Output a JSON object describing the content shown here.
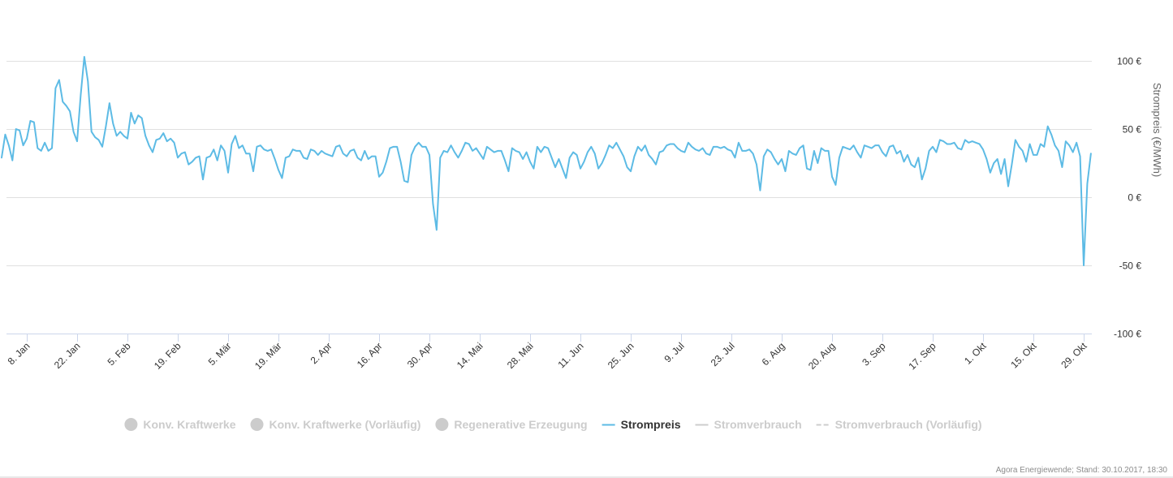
{
  "chart_data": {
    "type": "line",
    "xlabel": "",
    "ylabel": "Strompreis (€/MWh)",
    "ylim": [
      -100,
      100
    ],
    "yticks": [
      "100 €",
      "50 €",
      "0 €",
      "-50 €",
      "-100 €"
    ],
    "ytick_values": [
      100,
      50,
      0,
      -50,
      -100
    ],
    "x_start": "2017-01-01",
    "x_end": "2017-10-30",
    "xticks": [
      "8. Jan",
      "22. Jan",
      "5. Feb",
      "19. Feb",
      "5. M&auml;r",
      "19. M&auml;r",
      "2. Apr",
      "16. Apr",
      "30. Apr",
      "14. Mai",
      "28. Mai",
      "11. Jun",
      "25. Jun",
      "9. Jul",
      "23. Jul",
      "6. Aug",
      "20. Aug",
      "3. Sep",
      "17. Sep",
      "1. Okt",
      "15. Okt",
      "29. Okt"
    ],
    "xtick_dates": [
      "2017-01-08",
      "2017-01-22",
      "2017-02-05",
      "2017-02-19",
      "2017-03-05",
      "2017-03-19",
      "2017-04-02",
      "2017-04-16",
      "2017-04-30",
      "2017-05-14",
      "2017-05-28",
      "2017-06-11",
      "2017-06-25",
      "2017-07-09",
      "2017-07-23",
      "2017-08-06",
      "2017-08-20",
      "2017-09-03",
      "2017-09-17",
      "2017-10-01",
      "2017-10-15",
      "2017-10-29"
    ],
    "grid": true,
    "legend_position": "bottom-center",
    "series": [
      {
        "name": "Strompreis",
        "color": "#5dbbe5",
        "values": [
          29,
          46,
          38,
          27,
          50,
          49,
          38,
          43,
          56,
          55,
          36,
          34,
          40,
          34,
          36,
          80,
          86,
          70,
          67,
          63,
          48,
          41,
          75,
          103,
          85,
          48,
          44,
          42,
          37,
          52,
          69,
          54,
          45,
          48,
          45,
          43,
          62,
          54,
          60,
          58,
          45,
          38,
          33,
          42,
          43,
          47,
          41,
          43,
          40,
          29,
          32,
          33,
          24,
          26,
          29,
          30,
          13,
          29,
          30,
          35,
          27,
          38,
          34,
          18,
          39,
          45,
          36,
          38,
          32,
          32,
          19,
          37,
          38,
          35,
          34,
          35,
          28,
          20,
          14,
          29,
          30,
          35,
          34,
          34,
          29,
          28,
          35,
          34,
          31,
          34,
          32,
          31,
          30,
          37,
          38,
          32,
          30,
          34,
          35,
          29,
          27,
          34,
          28,
          30,
          30,
          15,
          18,
          26,
          36,
          37,
          37,
          26,
          12,
          11,
          31,
          37,
          40,
          37,
          37,
          31,
          -5,
          -24,
          29,
          34,
          33,
          38,
          33,
          29,
          34,
          40,
          39,
          34,
          36,
          32,
          28,
          37,
          35,
          33,
          34,
          34,
          27,
          19,
          36,
          34,
          33,
          28,
          33,
          26,
          21,
          37,
          33,
          37,
          36,
          29,
          22,
          28,
          21,
          14,
          29,
          33,
          31,
          21,
          26,
          33,
          37,
          32,
          21,
          25,
          31,
          38,
          36,
          40,
          35,
          30,
          22,
          19,
          30,
          37,
          34,
          38,
          31,
          28,
          24,
          33,
          34,
          38,
          39,
          39,
          36,
          34,
          33,
          40,
          37,
          35,
          34,
          36,
          32,
          31,
          37,
          37,
          36,
          37,
          35,
          34,
          29,
          40,
          34,
          34,
          35,
          32,
          24,
          5,
          30,
          35,
          33,
          28,
          24,
          28,
          19,
          34,
          32,
          31,
          36,
          38,
          21,
          20,
          34,
          25,
          36,
          34,
          34,
          15,
          9,
          29,
          37,
          36,
          35,
          38,
          33,
          29,
          38,
          37,
          36,
          38,
          38,
          33,
          30,
          37,
          38,
          32,
          34,
          26,
          31,
          24,
          22,
          29,
          13,
          21,
          34,
          37,
          33,
          42,
          41,
          39,
          39,
          40,
          36,
          35,
          42,
          40,
          41,
          40,
          39,
          35,
          28,
          18,
          25,
          28,
          17,
          28,
          8,
          24,
          42,
          37,
          34,
          26,
          39,
          31,
          31,
          39,
          37,
          52,
          46,
          38,
          34,
          22,
          41,
          38,
          33,
          40,
          30,
          -50,
          10,
          32
        ]
      }
    ]
  },
  "legend": [
    {
      "label": "Konv. Kraftwerke",
      "marker": "circle",
      "active": false
    },
    {
      "label": "Konv. Kraftwerke (Vorläufig)",
      "marker": "circle",
      "active": false
    },
    {
      "label": "Regenerative Erzeugung",
      "marker": "circle",
      "active": false
    },
    {
      "label": "Strompreis",
      "marker": "line",
      "active": true
    },
    {
      "label": "Stromverbrauch",
      "marker": "line",
      "active": false
    },
    {
      "label": "Stromverbrauch (Vorläufig)",
      "marker": "dashed-line",
      "active": false
    }
  ],
  "colors": {
    "active_text": "#333333",
    "inactive": "#cccccc",
    "grid": "#e0e0e0",
    "axis": "#ccd6eb"
  },
  "credit": "Agora Energiewende; Stand: 30.10.2017, 18:30"
}
